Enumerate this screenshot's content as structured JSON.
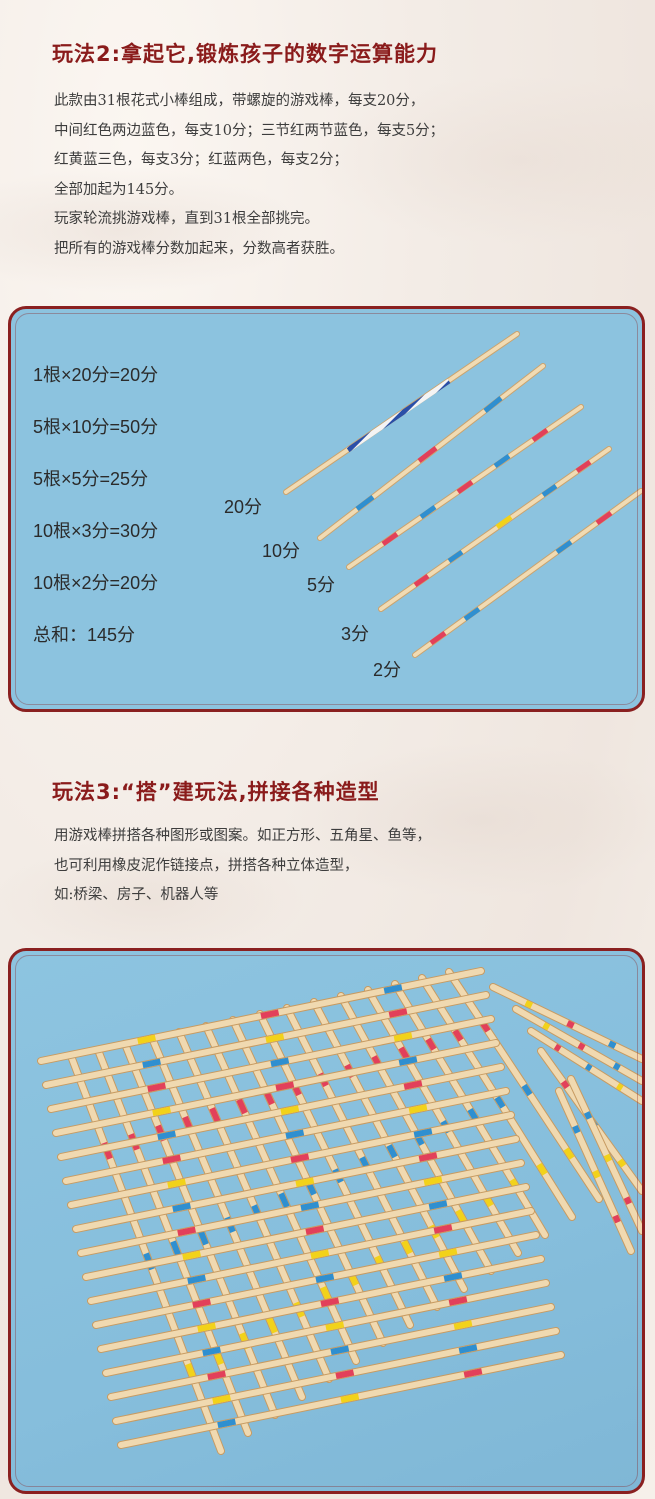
{
  "section2": {
    "title": "玩法2:拿起它,锻炼孩子的数字运算能力",
    "lines": [
      "此款由31根花式小棒组成，带螺旋的游戏棒，每支20分，",
      "中间红色两边蓝色，每支10分；三节红两节蓝色，每支5分；",
      "红黄蓝三色，每支3分；红蓝两色，每支2分；",
      "全部加起为145分。",
      "玩家轮流挑游戏棒，直到31根全部挑完。",
      "把所有的游戏棒分数加起来，分数高者获胜。"
    ]
  },
  "scoring": {
    "equations": [
      "1根×20分=20分",
      "5根×10分=50分",
      "5根×5分=25分",
      "10根×3分=30分",
      "10根×2分=20分",
      "总和：145分"
    ],
    "stick_labels": [
      "20分",
      "10分",
      "5分",
      "3分",
      "2分"
    ]
  },
  "section3": {
    "title": "玩法3:“搭”建玩法,拼接各种造型",
    "lines": [
      "用游戏棒拼搭各种图形或图案。如正方形、五角星、鱼等，",
      "也可利用橡皮泥作链接点，拼搭各种立体造型，",
      "如:桥梁、房子、机器人等"
    ]
  },
  "colors": {
    "title_red": "#8a1b1b",
    "frame_red": "#8a2020",
    "panel_blue": "#8cc3df",
    "stick_wood": "#f0d9b0",
    "band_red": "#e2405a",
    "band_blue": "#2f8fd0",
    "band_yellow": "#f2d21a"
  }
}
